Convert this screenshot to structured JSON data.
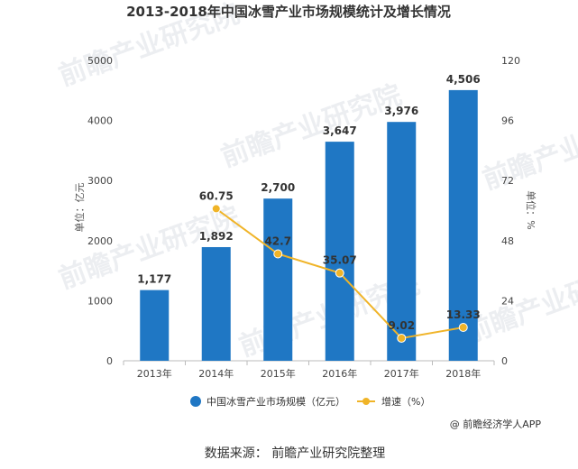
{
  "chart_data": {
    "type": "bar",
    "title": "2013-2018年中国冰雪产业市场规模统计及增长情况",
    "categories": [
      "2013年",
      "2014年",
      "2015年",
      "2016年",
      "2017年",
      "2018年"
    ],
    "series": [
      {
        "name": "中国冰雪产业市场规模（亿元）",
        "type": "bar",
        "axis": "left",
        "values": [
          1177,
          1892,
          2700,
          3647,
          3976,
          4506
        ],
        "labels": [
          "1,177",
          "1,892",
          "2,700",
          "3,647",
          "3,976",
          "4,506"
        ],
        "color": "#1f77c4"
      },
      {
        "name": "增速（%）",
        "type": "line",
        "axis": "right",
        "values": [
          null,
          60.75,
          42.7,
          35.07,
          9.02,
          13.33
        ],
        "labels": [
          "",
          "60.75",
          "42.7",
          "35.07",
          "9.02",
          "13.33"
        ],
        "color": "#f0b428"
      }
    ],
    "ylabel": "单位：亿元",
    "ylabel_right": "单位：%",
    "ylim": [
      0,
      5000
    ],
    "ylim_right": [
      0,
      120
    ],
    "yticks": [
      "0",
      "1000",
      "2000",
      "3000",
      "4000",
      "5000"
    ],
    "yticks_right": [
      "0",
      "24",
      "48",
      "72",
      "96",
      "120"
    ],
    "grid": false,
    "legend_position": "bottom"
  },
  "credit": "@ 前瞻经济学人APP",
  "source": "数据来源：  前瞻产业研究院整理",
  "watermark": "前瞻产业研究院"
}
